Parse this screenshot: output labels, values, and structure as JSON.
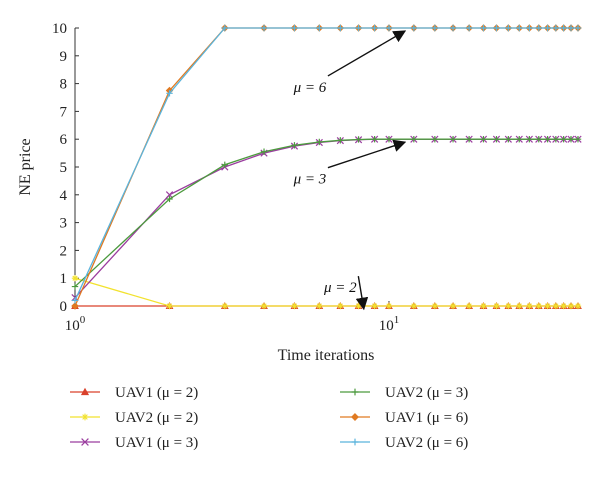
{
  "chart_data": {
    "type": "line",
    "xlabel": "Time iterations",
    "ylabel": "NE price",
    "xscale": "log",
    "xlim": [
      1,
      40
    ],
    "ylim": [
      0,
      10
    ],
    "xticks": [
      {
        "value": 1,
        "base": "10",
        "exp": "0"
      },
      {
        "value": 10,
        "base": "10",
        "exp": "1"
      }
    ],
    "yticks": [
      0,
      1,
      2,
      3,
      4,
      5,
      6,
      7,
      8,
      9,
      10
    ],
    "legend_position": "bottom",
    "annotations": [
      {
        "label": "μ = 6",
        "text_at": [
          5.6,
          7.7
        ],
        "arrow_to": [
          11.5,
          10.0
        ]
      },
      {
        "label": "μ = 3",
        "text_at": [
          5.6,
          4.4
        ],
        "arrow_to": [
          11.5,
          6.0
        ]
      },
      {
        "label": "μ = 2",
        "text_at": [
          7.0,
          0.5
        ],
        "arrow_to": [
          8.5,
          0.0
        ]
      }
    ],
    "series": [
      {
        "name": "UAV1 (μ = 2)",
        "color": "#d9412b",
        "marker": "triangle",
        "x": [
          1,
          2,
          3,
          4,
          5,
          6,
          7,
          8,
          9,
          10,
          12,
          14,
          16,
          18,
          20,
          22,
          24,
          26,
          28,
          30,
          32,
          34,
          36,
          38,
          40
        ],
        "y": [
          0,
          0,
          0,
          0,
          0,
          0,
          0,
          0,
          0,
          0,
          0,
          0,
          0,
          0,
          0,
          0,
          0,
          0,
          0,
          0,
          0,
          0,
          0,
          0,
          0
        ]
      },
      {
        "name": "UAV2 (μ = 2)",
        "color": "#f2e22e",
        "marker": "star",
        "x": [
          1,
          2,
          3,
          4,
          5,
          6,
          7,
          8,
          9,
          10,
          12,
          14,
          16,
          18,
          20,
          22,
          24,
          26,
          28,
          30,
          32,
          34,
          36,
          38,
          40
        ],
        "y": [
          1.0,
          0,
          0,
          0,
          0,
          0,
          0,
          0,
          0,
          0,
          0,
          0,
          0,
          0,
          0,
          0,
          0,
          0,
          0,
          0,
          0,
          0,
          0,
          0,
          0
        ]
      },
      {
        "name": "UAV1 (μ = 3)",
        "color": "#9b3d9f",
        "marker": "x",
        "x": [
          1,
          2,
          3,
          4,
          5,
          6,
          7,
          8,
          9,
          10,
          12,
          14,
          16,
          18,
          20,
          22,
          24,
          26,
          28,
          30,
          32,
          34,
          36,
          38,
          40
        ],
        "y": [
          0.3,
          4.0,
          5.0,
          5.5,
          5.75,
          5.88,
          5.95,
          5.98,
          6.0,
          6.0,
          6.0,
          6.0,
          6.0,
          6.0,
          6.0,
          6.0,
          6.0,
          6.0,
          6.0,
          6.0,
          6.0,
          6.0,
          6.0,
          6.0,
          6.0
        ]
      },
      {
        "name": "UAV2 (μ = 3)",
        "color": "#4c9a3e",
        "marker": "plus",
        "x": [
          1,
          2,
          3,
          4,
          5,
          6,
          7,
          8,
          9,
          10,
          12,
          14,
          16,
          18,
          20,
          22,
          24,
          26,
          28,
          30,
          32,
          34,
          36,
          38,
          40
        ],
        "y": [
          0.7,
          3.85,
          5.08,
          5.55,
          5.78,
          5.9,
          5.96,
          5.99,
          6.0,
          6.0,
          6.0,
          6.0,
          6.0,
          6.0,
          6.0,
          6.0,
          6.0,
          6.0,
          6.0,
          6.0,
          6.0,
          6.0,
          6.0,
          6.0,
          6.0
        ]
      },
      {
        "name": "UAV1 (μ = 6)",
        "color": "#e07a22",
        "marker": "diamond",
        "x": [
          1,
          2,
          3,
          4,
          5,
          6,
          7,
          8,
          9,
          10,
          12,
          14,
          16,
          18,
          20,
          22,
          24,
          26,
          28,
          30,
          32,
          34,
          36,
          38,
          40
        ],
        "y": [
          0,
          7.75,
          10,
          10,
          10,
          10,
          10,
          10,
          10,
          10,
          10,
          10,
          10,
          10,
          10,
          10,
          10,
          10,
          10,
          10,
          10,
          10,
          10,
          10,
          10
        ]
      },
      {
        "name": "UAV2 (μ = 6)",
        "color": "#5bb4dc",
        "marker": "plus",
        "x": [
          1,
          2,
          3,
          4,
          5,
          6,
          7,
          8,
          9,
          10,
          12,
          14,
          16,
          18,
          20,
          22,
          24,
          26,
          28,
          30,
          32,
          34,
          36,
          38,
          40
        ],
        "y": [
          0.2,
          7.65,
          10,
          10,
          10,
          10,
          10,
          10,
          10,
          10,
          10,
          10,
          10,
          10,
          10,
          10,
          10,
          10,
          10,
          10,
          10,
          10,
          10,
          10,
          10
        ]
      }
    ]
  }
}
